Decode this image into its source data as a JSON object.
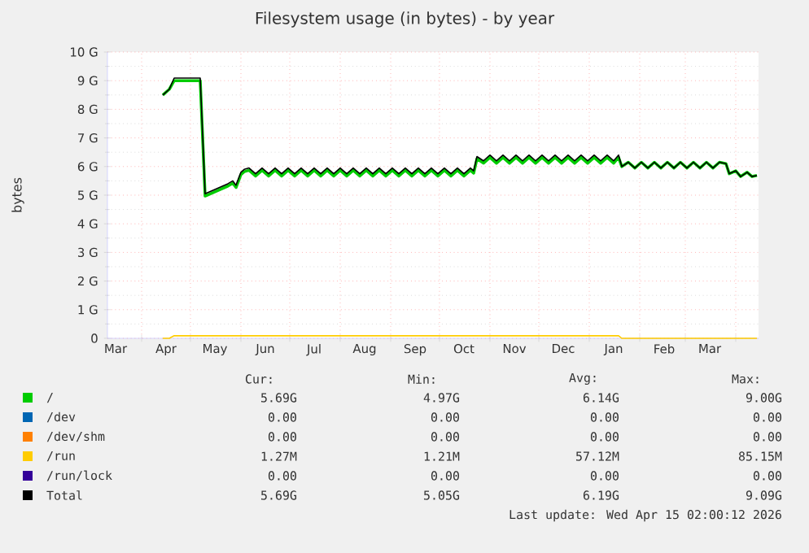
{
  "chart_data": {
    "type": "line",
    "title": "Filesystem usage (in bytes) - by year",
    "ylabel": "bytes",
    "x": [
      "2025-04-14",
      "2025-04-18",
      "2025-04-21",
      "2025-05-07",
      "2025-05-10",
      "2025-05-14",
      "2025-05-24",
      "2025-05-27",
      "2025-05-29",
      "2025-06-01",
      "2025-06-03",
      "2025-06-06",
      "2025-06-10",
      "2025-06-14",
      "2025-06-18",
      "2025-06-22",
      "2025-06-26",
      "2025-06-30",
      "2025-07-04",
      "2025-07-08",
      "2025-07-12",
      "2025-07-16",
      "2025-07-20",
      "2025-07-24",
      "2025-07-28",
      "2025-08-01",
      "2025-08-05",
      "2025-08-09",
      "2025-08-13",
      "2025-08-17",
      "2025-08-21",
      "2025-08-25",
      "2025-08-29",
      "2025-09-02",
      "2025-09-06",
      "2025-09-10",
      "2025-09-14",
      "2025-09-18",
      "2025-09-22",
      "2025-09-26",
      "2025-09-30",
      "2025-10-04",
      "2025-10-08",
      "2025-10-12",
      "2025-10-16",
      "2025-10-20",
      "2025-10-22",
      "2025-10-24",
      "2025-10-28",
      "2025-11-01",
      "2025-11-05",
      "2025-11-09",
      "2025-11-13",
      "2025-11-17",
      "2025-11-21",
      "2025-11-25",
      "2025-11-29",
      "2025-12-03",
      "2025-12-07",
      "2025-12-11",
      "2025-12-15",
      "2025-12-19",
      "2025-12-23",
      "2025-12-27",
      "2025-12-31",
      "2026-01-04",
      "2026-01-08",
      "2026-01-12",
      "2026-01-16",
      "2026-01-19",
      "2026-01-21",
      "2026-01-25",
      "2026-01-29",
      "2026-02-02",
      "2026-02-06",
      "2026-02-10",
      "2026-02-14",
      "2026-02-18",
      "2026-02-22",
      "2026-02-26",
      "2026-03-02",
      "2026-03-06",
      "2026-03-10",
      "2026-03-14",
      "2026-03-18",
      "2026-03-22",
      "2026-03-26",
      "2026-03-28",
      "2026-04-01",
      "2026-04-04",
      "2026-04-08",
      "2026-04-11",
      "2026-04-14"
    ],
    "series": [
      {
        "name": "/",
        "color": "#00cc00",
        "values": [
          8.5,
          8.7,
          9.0,
          9.0,
          4.97,
          5.07,
          5.32,
          5.42,
          5.27,
          5.72,
          5.82,
          5.87,
          5.67,
          5.87,
          5.67,
          5.87,
          5.67,
          5.87,
          5.67,
          5.87,
          5.67,
          5.87,
          5.67,
          5.87,
          5.67,
          5.87,
          5.67,
          5.87,
          5.67,
          5.87,
          5.67,
          5.87,
          5.67,
          5.87,
          5.67,
          5.87,
          5.67,
          5.87,
          5.67,
          5.87,
          5.67,
          5.87,
          5.67,
          5.87,
          5.67,
          5.87,
          5.77,
          6.27,
          6.12,
          6.32,
          6.12,
          6.32,
          6.12,
          6.32,
          6.12,
          6.32,
          6.12,
          6.32,
          6.12,
          6.32,
          6.12,
          6.32,
          6.12,
          6.32,
          6.12,
          6.32,
          6.12,
          6.32,
          6.12,
          6.32,
          6.0,
          6.15,
          5.95,
          6.15,
          5.95,
          6.15,
          5.95,
          6.15,
          5.95,
          6.15,
          5.95,
          6.15,
          5.95,
          6.15,
          5.95,
          6.15,
          6.1,
          5.75,
          5.85,
          5.65,
          5.8,
          5.65,
          5.69
        ]
      },
      {
        "name": "/dev",
        "color": "#0066b3",
        "values": [
          null,
          null,
          null,
          null,
          null,
          null,
          null,
          null,
          null,
          null,
          null,
          null,
          null,
          null,
          null,
          null,
          null,
          null,
          null,
          null,
          null,
          null,
          null,
          null,
          null,
          null,
          null,
          null,
          null,
          null,
          null,
          null,
          null,
          null,
          null,
          null,
          null,
          null,
          null,
          null,
          null,
          null,
          null,
          null,
          null,
          null,
          null,
          null,
          null,
          null,
          null,
          null,
          null,
          null,
          null,
          null,
          null,
          null,
          null,
          null,
          null,
          null,
          null,
          null,
          null,
          null,
          null,
          null,
          null,
          null,
          null,
          null,
          null,
          null,
          null,
          null,
          null,
          null,
          null,
          null,
          null,
          null,
          null,
          null,
          null,
          null,
          null,
          null,
          null,
          null,
          null,
          null,
          null
        ]
      },
      {
        "name": "/dev/shm",
        "color": "#ff8000",
        "values": [
          null,
          null,
          null,
          null,
          null,
          null,
          null,
          null,
          null,
          null,
          null,
          null,
          null,
          null,
          null,
          null,
          null,
          null,
          null,
          null,
          null,
          null,
          null,
          null,
          null,
          null,
          null,
          null,
          null,
          null,
          null,
          null,
          null,
          null,
          null,
          null,
          null,
          null,
          null,
          null,
          null,
          null,
          null,
          null,
          null,
          null,
          null,
          null,
          null,
          null,
          null,
          null,
          null,
          null,
          null,
          null,
          null,
          null,
          null,
          null,
          null,
          null,
          null,
          null,
          null,
          null,
          null,
          null,
          null,
          null,
          null,
          null,
          null,
          null,
          null,
          null,
          null,
          null,
          null,
          null,
          null,
          null,
          null,
          null,
          null,
          null,
          null,
          null,
          null,
          null,
          null,
          null,
          null
        ]
      },
      {
        "name": "/run",
        "color": "#ffcc00",
        "x": [
          "2025-04-14",
          "2025-04-18",
          "2025-04-21",
          "2026-01-19",
          "2026-01-21",
          "2026-04-14"
        ],
        "values": [
          0,
          0,
          0.09,
          0.09,
          0,
          0
        ]
      },
      {
        "name": "/run/lock",
        "color": "#330099",
        "values": [
          null,
          null,
          null,
          null,
          null,
          null,
          null,
          null,
          null,
          null,
          null,
          null,
          null,
          null,
          null,
          null,
          null,
          null,
          null,
          null,
          null,
          null,
          null,
          null,
          null,
          null,
          null,
          null,
          null,
          null,
          null,
          null,
          null,
          null,
          null,
          null,
          null,
          null,
          null,
          null,
          null,
          null,
          null,
          null,
          null,
          null,
          null,
          null,
          null,
          null,
          null,
          null,
          null,
          null,
          null,
          null,
          null,
          null,
          null,
          null,
          null,
          null,
          null,
          null,
          null,
          null,
          null,
          null,
          null,
          null,
          null,
          null,
          null,
          null,
          null,
          null,
          null,
          null,
          null,
          null,
          null,
          null,
          null,
          null,
          null,
          null,
          null,
          null,
          null,
          null,
          null,
          null,
          null
        ]
      },
      {
        "name": "Total",
        "color": "#000000",
        "values": [
          8.5,
          8.7,
          9.09,
          9.09,
          5.05,
          5.15,
          5.4,
          5.5,
          5.35,
          5.8,
          5.9,
          5.95,
          5.75,
          5.95,
          5.75,
          5.95,
          5.75,
          5.95,
          5.75,
          5.95,
          5.75,
          5.95,
          5.75,
          5.95,
          5.75,
          5.95,
          5.75,
          5.95,
          5.75,
          5.95,
          5.75,
          5.95,
          5.75,
          5.95,
          5.75,
          5.95,
          5.75,
          5.95,
          5.75,
          5.95,
          5.75,
          5.95,
          5.75,
          5.95,
          5.75,
          5.95,
          5.85,
          6.35,
          6.2,
          6.4,
          6.2,
          6.4,
          6.2,
          6.4,
          6.2,
          6.4,
          6.2,
          6.4,
          6.2,
          6.4,
          6.2,
          6.4,
          6.2,
          6.4,
          6.2,
          6.4,
          6.2,
          6.4,
          6.2,
          6.4,
          6.0,
          6.15,
          5.95,
          6.15,
          5.95,
          6.15,
          5.95,
          6.15,
          5.95,
          6.15,
          5.95,
          6.15,
          5.95,
          6.15,
          5.95,
          6.15,
          6.1,
          5.75,
          5.85,
          5.65,
          5.8,
          5.65,
          5.69
        ]
      }
    ],
    "xlim": [
      "2025-03-11",
      "2026-04-15"
    ],
    "xticks": [
      {
        "value": "2025-03-16",
        "label": "Mar"
      },
      {
        "value": "2025-04-16",
        "label": "Apr"
      },
      {
        "value": "2025-05-16",
        "label": "May"
      },
      {
        "value": "2025-06-16",
        "label": "Jun"
      },
      {
        "value": "2025-07-16",
        "label": "Jul"
      },
      {
        "value": "2025-08-16",
        "label": "Aug"
      },
      {
        "value": "2025-09-16",
        "label": "Sep"
      },
      {
        "value": "2025-10-16",
        "label": "Oct"
      },
      {
        "value": "2025-11-16",
        "label": "Nov"
      },
      {
        "value": "2025-12-16",
        "label": "Dec"
      },
      {
        "value": "2026-01-16",
        "label": "Jan"
      },
      {
        "value": "2026-02-16",
        "label": "Feb"
      },
      {
        "value": "2026-03-16",
        "label": "Mar"
      },
      {
        "value": "2025-04-01",
        "label": null
      },
      {
        "value": "2025-05-01",
        "label": null
      },
      {
        "value": "2025-06-01",
        "label": null
      },
      {
        "value": "2025-07-01",
        "label": null
      },
      {
        "value": "2025-08-01",
        "label": null
      },
      {
        "value": "2025-09-01",
        "label": null
      },
      {
        "value": "2025-10-01",
        "label": null
      },
      {
        "value": "2025-11-01",
        "label": null
      },
      {
        "value": "2025-12-01",
        "label": null
      },
      {
        "value": "2026-01-01",
        "label": null
      },
      {
        "value": "2026-02-01",
        "label": null
      },
      {
        "value": "2026-03-01",
        "label": null
      },
      {
        "value": "2026-04-01",
        "label": null
      }
    ],
    "ylim": [
      0,
      10
    ],
    "yticks": [
      0,
      {
        "value": 1,
        "label": "1 G"
      },
      {
        "value": 2,
        "label": "2 G"
      },
      {
        "value": 3,
        "label": "3 G"
      },
      {
        "value": 4,
        "label": "4 G"
      },
      {
        "value": 5,
        "label": "5 G"
      },
      {
        "value": 6,
        "label": "6 G"
      },
      {
        "value": 7,
        "label": "7 G"
      },
      {
        "value": 8,
        "label": "8 G"
      },
      {
        "value": 9,
        "label": "9 G"
      },
      {
        "value": 10,
        "label": "10 G"
      }
    ],
    "grid": true,
    "legend": "bottom",
    "annotations": [
      "Cur:",
      "Min:",
      "Avg:",
      "Max:",
      "5.69G",
      "4.97G",
      "6.14G",
      "9.00G",
      "0.00",
      "0.00",
      "0.00",
      "0.00",
      "0.00",
      "0.00",
      "0.00",
      "0.00",
      "1.27M",
      "1.21M",
      "57.12M",
      "85.15M",
      "0.00",
      "0.00",
      "0.00",
      "0.00",
      "5.69G",
      "5.05G",
      "6.19G",
      "9.09G",
      "Last update: Wed Apr 15 02:00:12 2026"
    ]
  }
}
